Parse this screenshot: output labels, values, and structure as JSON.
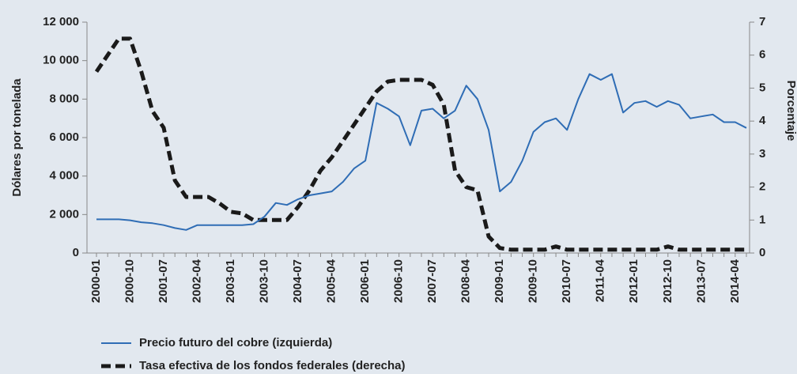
{
  "chart_data": {
    "type": "line",
    "ylabel": "Dólares por tonelada",
    "y2label": "Porcentaje",
    "categories": [
      "2000-01",
      null,
      null,
      "2000-10",
      null,
      null,
      "2001-07",
      null,
      null,
      "2002-04",
      null,
      null,
      "2003-01",
      null,
      null,
      "2003-10",
      null,
      null,
      "2004-07",
      null,
      null,
      "2005-04",
      null,
      null,
      "2006-01",
      null,
      null,
      "2006-10",
      null,
      null,
      "2007-07",
      null,
      null,
      "2008-04",
      null,
      null,
      "2009-01",
      null,
      null,
      "2009-10",
      null,
      null,
      "2010-07",
      null,
      null,
      "2011-04",
      null,
      null,
      "2012-01",
      null,
      null,
      "2012-10",
      null,
      null,
      "2013-07",
      null,
      null,
      "2014-04",
      null
    ],
    "series": [
      {
        "name": "Precio futuro del cobre (izquierda)",
        "color": "#2f6db5",
        "axis": "y",
        "values": [
          1750,
          1750,
          1750,
          1700,
          1600,
          1550,
          1450,
          1300,
          1200,
          1450,
          1450,
          1450,
          1450,
          1450,
          1500,
          1900,
          2600,
          2500,
          2800,
          3000,
          3100,
          3200,
          3700,
          4400,
          4800,
          7800,
          7500,
          7100,
          5600,
          7400,
          7500,
          7000,
          7400,
          8700,
          8000,
          6400,
          3200,
          3700,
          4800,
          6300,
          6800,
          7000,
          6400,
          8000,
          9300,
          9000,
          9300,
          7300,
          7800,
          7900,
          7600,
          7900,
          7700,
          7000,
          7100,
          7200,
          6800,
          6800,
          6500
        ]
      },
      {
        "name": "Tasa efectiva de los fondos federales (derecha)",
        "color": "#1a1a1a",
        "axis": "y2",
        "values": [
          5.5,
          6.0,
          6.5,
          6.5,
          5.5,
          4.3,
          3.8,
          2.2,
          1.7,
          1.7,
          1.7,
          1.5,
          1.25,
          1.2,
          1.0,
          1.0,
          1.0,
          1.0,
          1.4,
          1.9,
          2.5,
          2.9,
          3.4,
          3.9,
          4.4,
          4.9,
          5.2,
          5.25,
          5.25,
          5.25,
          5.1,
          4.5,
          2.5,
          2.0,
          1.9,
          0.5,
          0.15,
          0.1,
          0.1,
          0.1,
          0.1,
          0.2,
          0.1,
          0.1,
          0.1,
          0.1,
          0.1,
          0.1,
          0.1,
          0.1,
          0.1,
          0.2,
          0.1,
          0.1,
          0.1,
          0.1,
          0.1,
          0.1,
          0.1
        ]
      }
    ],
    "ylim": [
      0,
      12000
    ],
    "yticks": [
      0,
      {
        "value": 2000,
        "label": "2 000"
      },
      {
        "value": 4000,
        "label": "4 000"
      },
      {
        "value": 6000,
        "label": "6 000"
      },
      {
        "value": 8000,
        "label": "8 000"
      },
      {
        "value": 10000,
        "label": "10 000"
      },
      {
        "value": 12000,
        "label": "12 000"
      }
    ],
    "y2lim": [
      0,
      7
    ],
    "y2ticks": [
      0,
      1,
      2,
      3,
      4,
      5,
      6,
      7
    ],
    "legend": "bottom-left"
  }
}
